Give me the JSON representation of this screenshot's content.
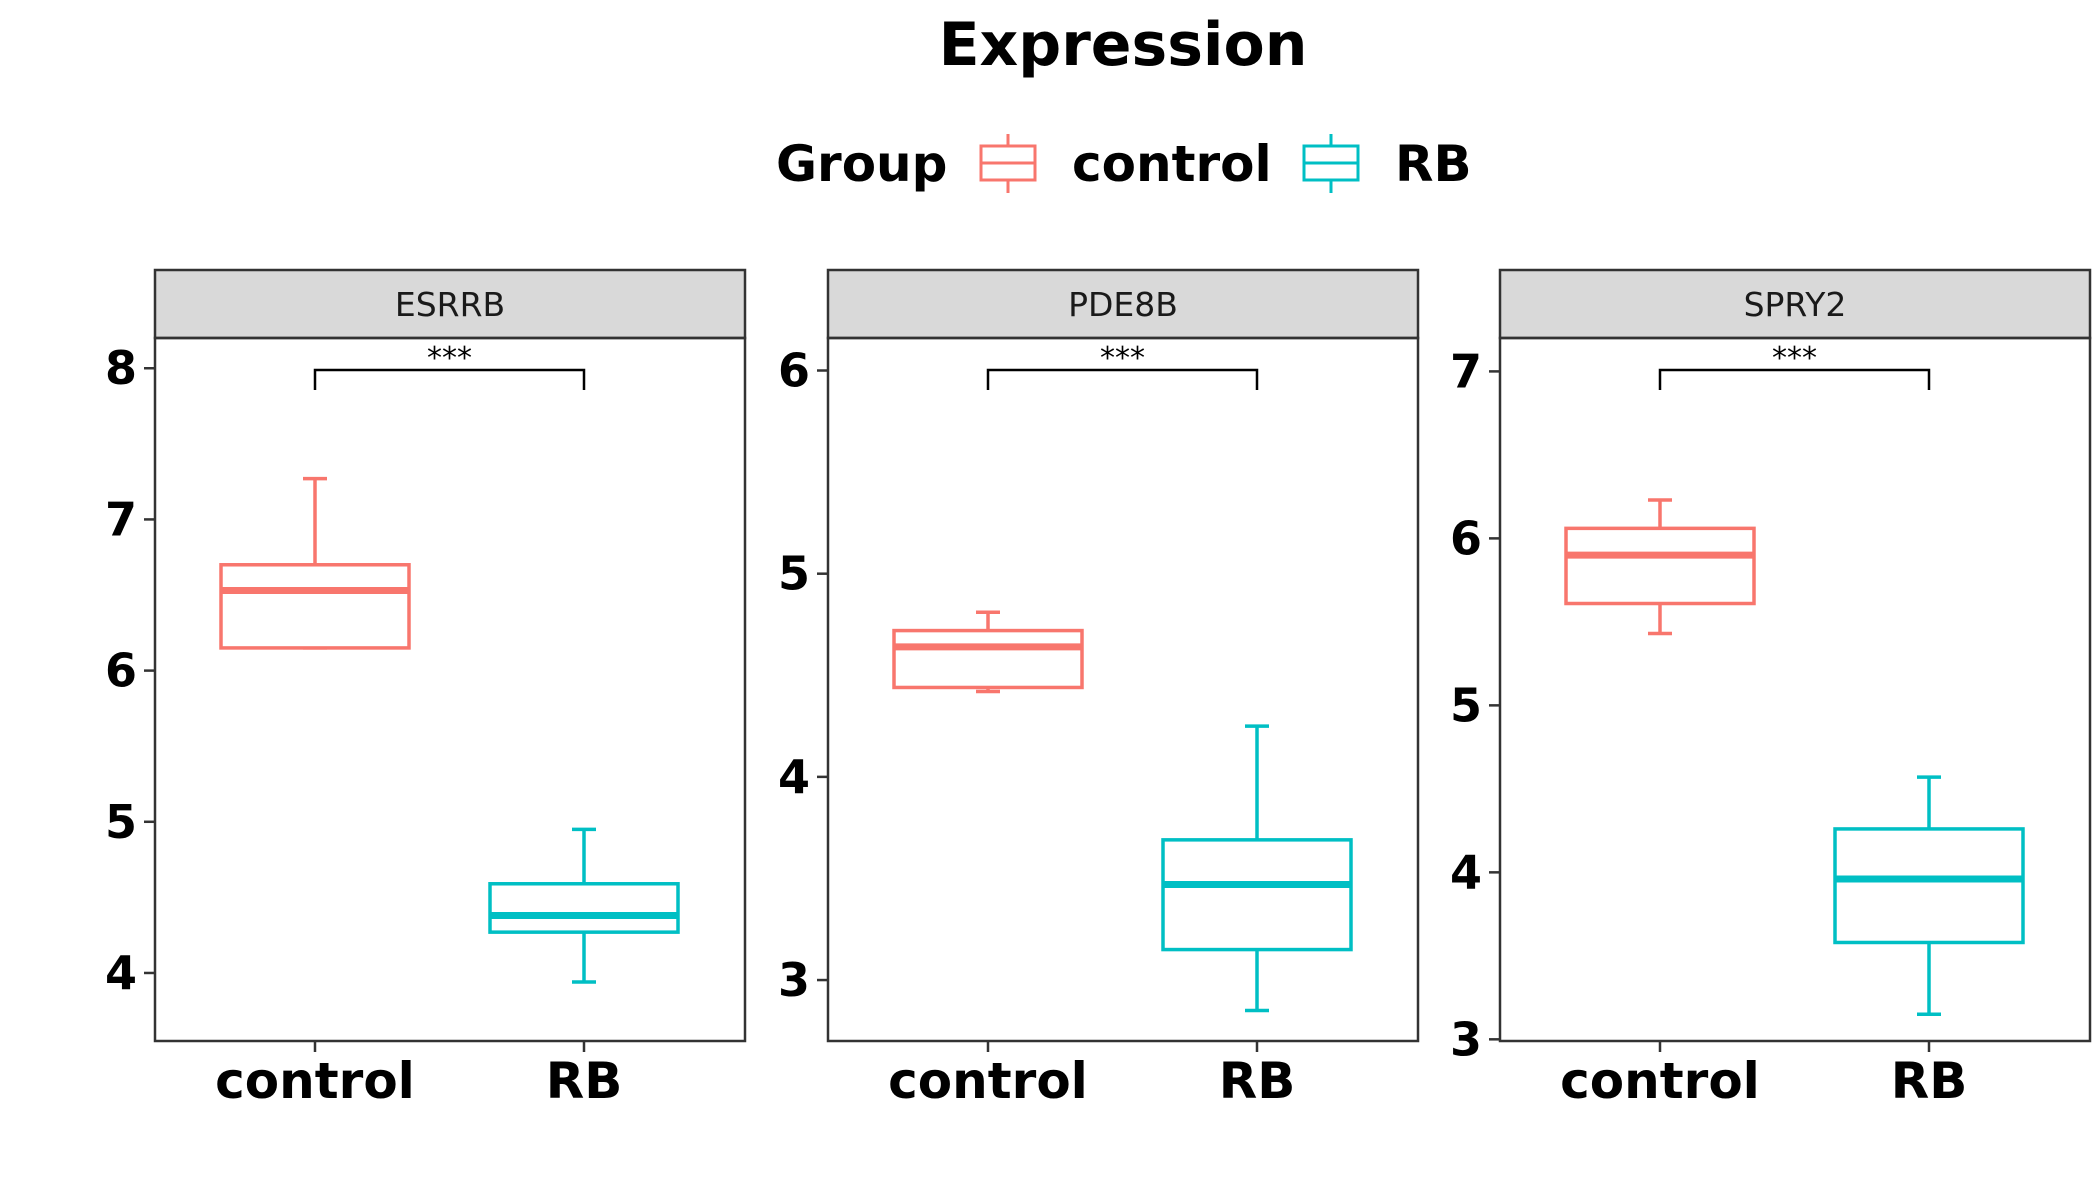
{
  "colors": {
    "control": "#F8766D",
    "RB": "#00BFC4"
  },
  "chart_data": {
    "type": "boxplot",
    "title": "Expression",
    "legend": {
      "title": "Group",
      "position": "top",
      "entries": [
        "control",
        "RB"
      ]
    },
    "categories": [
      "control",
      "RB"
    ],
    "panels": [
      {
        "name": "ESRRB",
        "ylim": [
          3.55,
          8.2
        ],
        "yticks": [
          4,
          5,
          6,
          7,
          8
        ],
        "significance": "***",
        "boxes": [
          {
            "group": "control",
            "min": 6.15,
            "q1": 6.15,
            "median": 6.53,
            "q3": 6.7,
            "max": 7.27
          },
          {
            "group": "RB",
            "min": 3.94,
            "q1": 4.27,
            "median": 4.38,
            "q3": 4.59,
            "max": 4.95
          }
        ]
      },
      {
        "name": "PDE8B",
        "ylim": [
          2.7,
          6.16
        ],
        "yticks": [
          3,
          4,
          5,
          6
        ],
        "significance": "***",
        "boxes": [
          {
            "group": "control",
            "min": 4.42,
            "q1": 4.44,
            "median": 4.64,
            "q3": 4.72,
            "max": 4.81
          },
          {
            "group": "RB",
            "min": 2.85,
            "q1": 3.15,
            "median": 3.47,
            "q3": 3.69,
            "max": 4.25
          }
        ]
      },
      {
        "name": "SPRY2",
        "ylim": [
          2.99,
          7.2
        ],
        "yticks": [
          3,
          4,
          5,
          6,
          7
        ],
        "significance": "***",
        "boxes": [
          {
            "group": "control",
            "min": 5.43,
            "q1": 5.61,
            "median": 5.9,
            "q3": 6.06,
            "max": 6.23
          },
          {
            "group": "RB",
            "min": 3.15,
            "q1": 3.58,
            "median": 3.96,
            "q3": 4.26,
            "max": 4.57
          }
        ]
      }
    ]
  }
}
